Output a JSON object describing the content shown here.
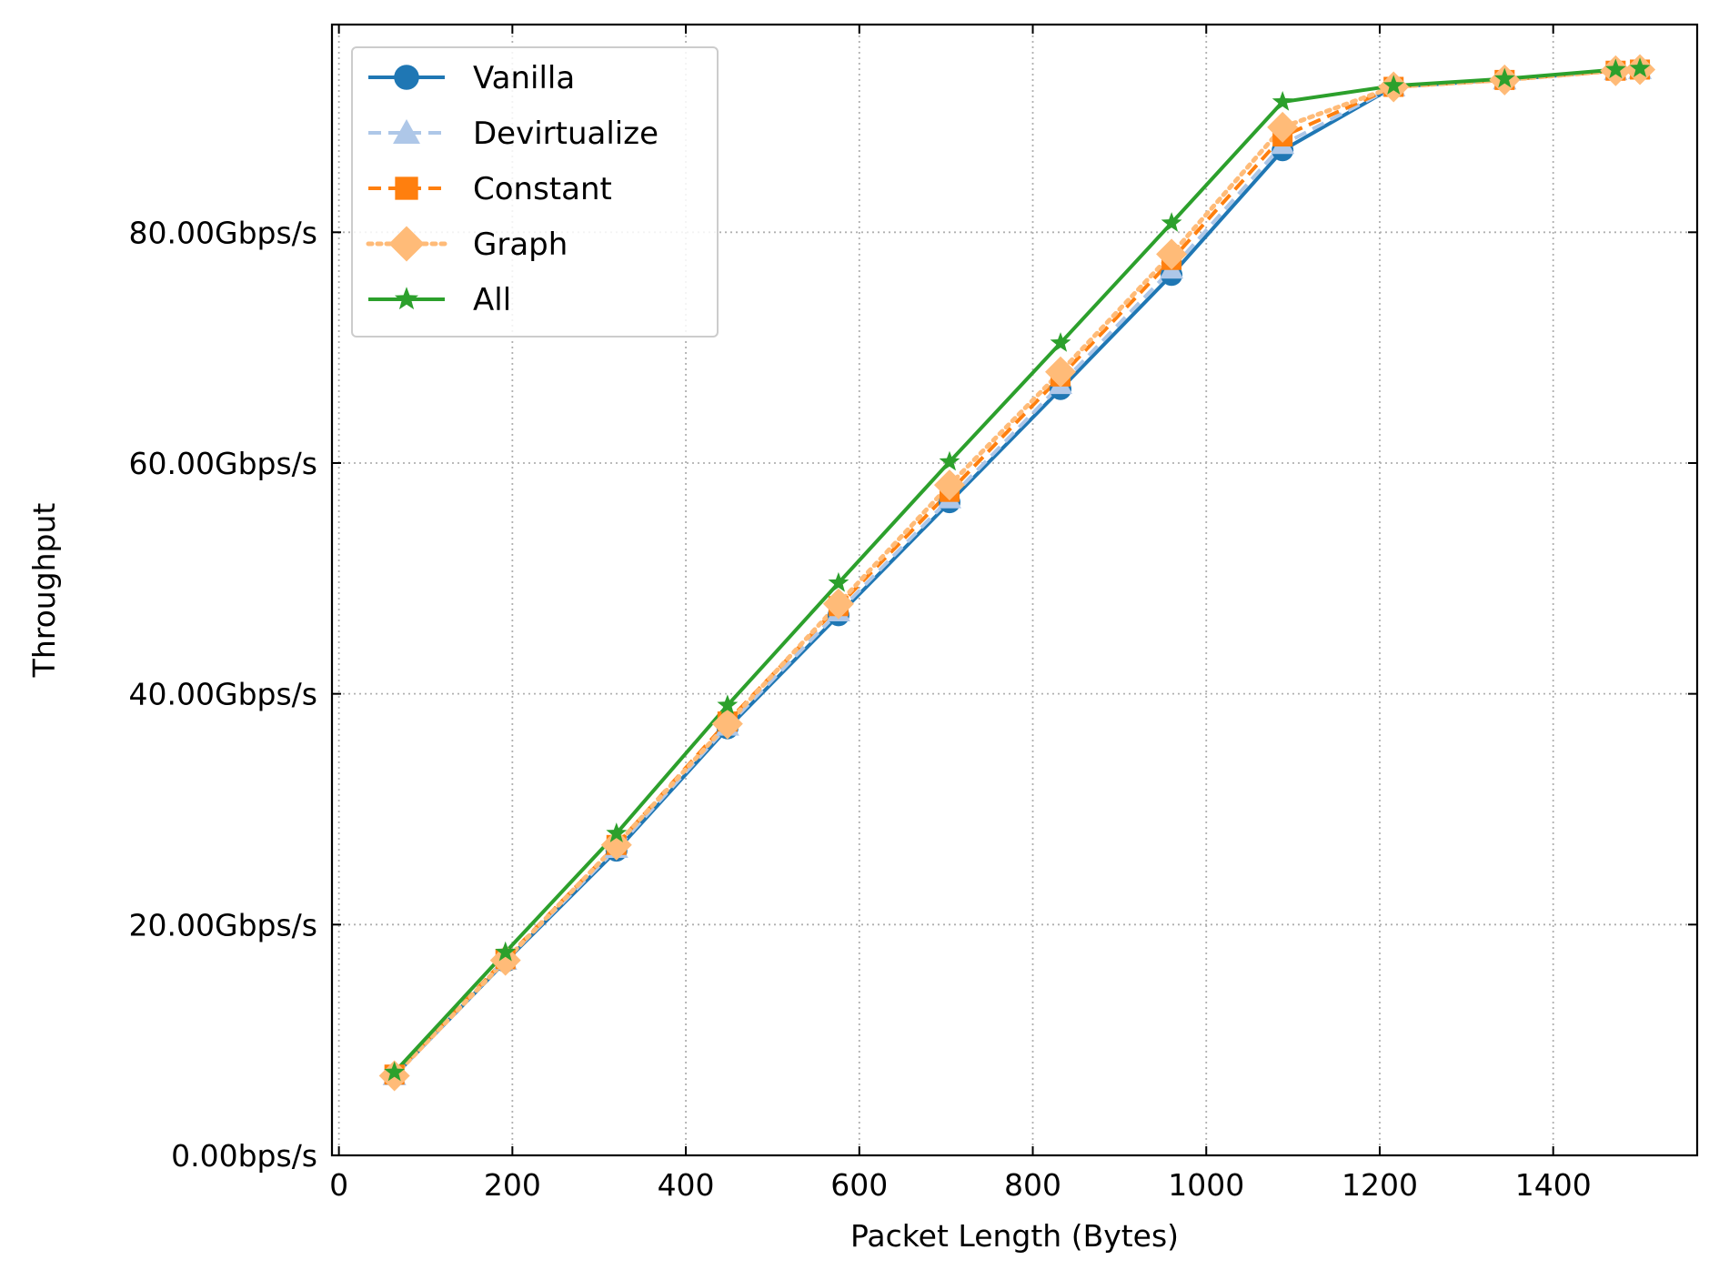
{
  "chart_data": {
    "type": "line",
    "title": "",
    "xlabel": "Packet Length (Bytes)",
    "ylabel": "Throughput",
    "xlim": [
      -8,
      1566
    ],
    "ylim": [
      0,
      98
    ],
    "x_ticks": [
      0,
      200,
      400,
      600,
      800,
      1000,
      1200,
      1400
    ],
    "x_tick_labels": [
      "0",
      "200",
      "400",
      "600",
      "800",
      "1000",
      "1200",
      "1400"
    ],
    "y_ticks": [
      0,
      20,
      40,
      60,
      80
    ],
    "y_tick_labels": [
      "0.00bps/s",
      "20.00Gbps/s",
      "40.00Gbps/s",
      "60.00Gbps/s",
      "80.00Gbps/s"
    ],
    "grid": true,
    "legend_position": "top-left",
    "x": [
      64,
      192,
      320,
      448,
      576,
      704,
      832,
      960,
      1088,
      1216,
      1344,
      1472,
      1500
    ],
    "series": [
      {
        "name": "Vanilla",
        "color": "#1f77b4",
        "marker": "circle",
        "line": "solid",
        "values": [
          6.9,
          16.8,
          26.4,
          37.0,
          46.8,
          56.6,
          66.4,
          76.3,
          87.1,
          92.6,
          93.2,
          94.0,
          94.1
        ]
      },
      {
        "name": "Devirtualize",
        "color": "#aec7e8",
        "marker": "triangle",
        "line": "dashed",
        "values": [
          6.9,
          16.9,
          26.6,
          37.2,
          47.1,
          56.9,
          66.8,
          76.8,
          87.6,
          92.6,
          93.2,
          94.0,
          94.1
        ]
      },
      {
        "name": "Constant",
        "color": "#ff7f0e",
        "marker": "square",
        "line": "dashed",
        "values": [
          7.0,
          17.0,
          26.9,
          37.6,
          47.6,
          57.5,
          67.5,
          77.6,
          88.3,
          92.6,
          93.2,
          94.0,
          94.1
        ]
      },
      {
        "name": "Graph",
        "color": "#ffbb78",
        "marker": "diamond",
        "line": "dotted",
        "values": [
          6.9,
          16.9,
          26.9,
          37.4,
          47.8,
          58.1,
          67.9,
          78.1,
          89.1,
          92.6,
          93.2,
          94.0,
          94.1
        ]
      },
      {
        "name": "All",
        "color": "#2ca02c",
        "marker": "star",
        "line": "solid",
        "values": [
          7.2,
          17.6,
          27.9,
          39.0,
          49.6,
          60.1,
          70.4,
          80.8,
          91.3,
          92.7,
          93.3,
          94.1,
          94.2
        ]
      }
    ]
  }
}
